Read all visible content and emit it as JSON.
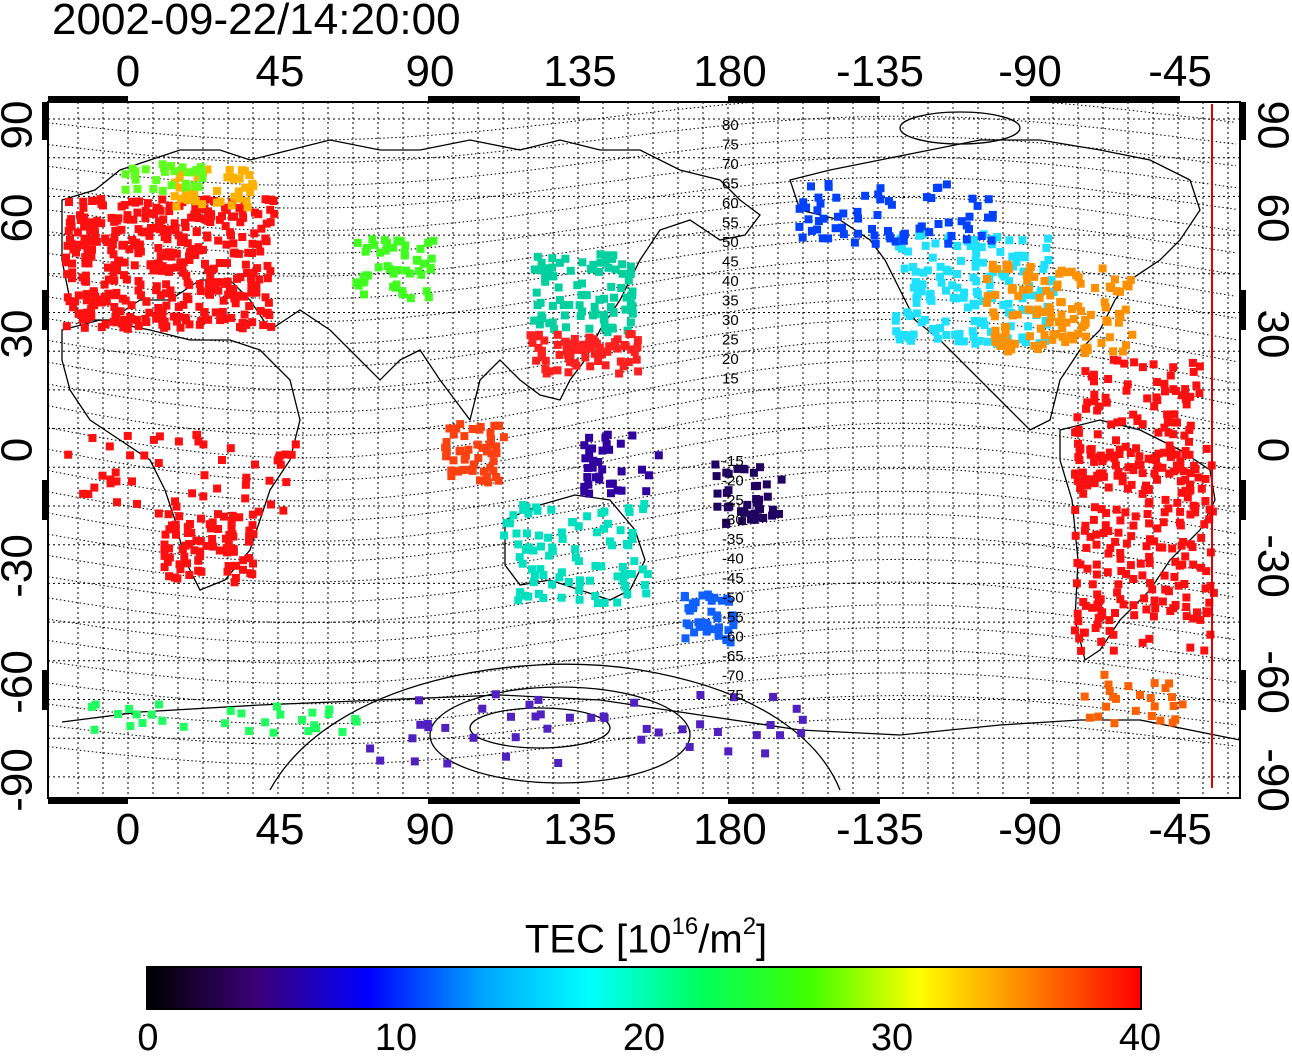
{
  "timestamp": "2002-09-22/14:20:00",
  "map": {
    "top_lon_labels": [
      "0",
      "45",
      "90",
      "135",
      "180",
      "-135",
      "-90",
      "-45"
    ],
    "bottom_lon_labels": [
      "0",
      "45",
      "90",
      "135",
      "180",
      "-135",
      "-90",
      "-45"
    ],
    "left_lat_labels": [
      "90",
      "60",
      "30",
      "0",
      "-30",
      "-60",
      "-90"
    ],
    "right_lat_labels": [
      "90",
      "60",
      "30",
      "0",
      "-30",
      "-60",
      "-90"
    ],
    "contour_labels_north": [
      "80",
      "75",
      "70",
      "65",
      "60",
      "55",
      "50",
      "45",
      "40",
      "35",
      "30",
      "25",
      "20",
      "15"
    ],
    "contour_labels_south": [
      "-15",
      "-20",
      "-25",
      "-30",
      "-35",
      "-40",
      "-45",
      "-50",
      "-55",
      "-60",
      "-65",
      "-70",
      "-75"
    ],
    "terminator_color": "#e00000"
  },
  "colorbar": {
    "title_prefix": "TEC  [10",
    "title_sup1": "16",
    "title_mid": "/m",
    "title_sup2": "2",
    "title_suffix": "]",
    "min": 0,
    "max": 40,
    "tick_labels": [
      "0",
      "10",
      "20",
      "30",
      "40"
    ],
    "gradient_colors": [
      "#000000",
      "#3c0078",
      "#0000ff",
      "#00a0ff",
      "#00ffff",
      "#00ff60",
      "#40ff00",
      "#ffff00",
      "#ff8000",
      "#ff0000"
    ]
  }
}
